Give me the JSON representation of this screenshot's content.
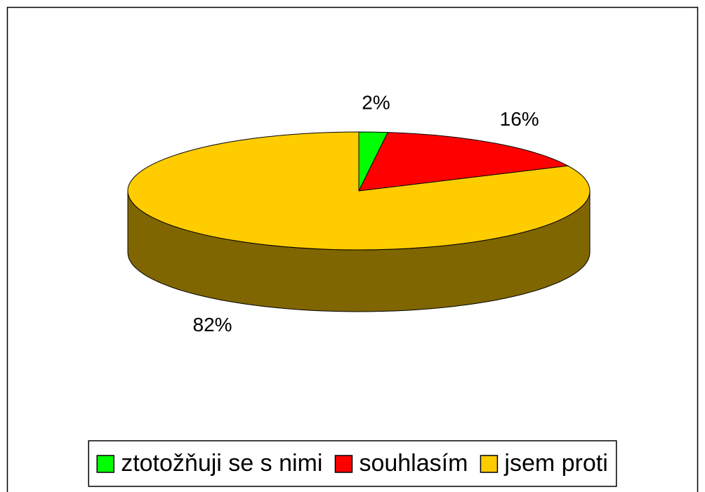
{
  "chart_data": {
    "type": "pie",
    "categories": [
      "ztotožňuji se s nimi",
      "souhlasím",
      "jsem proti"
    ],
    "values": [
      2,
      16,
      82
    ],
    "value_labels": [
      "2%",
      "16%",
      "82%"
    ],
    "colors": [
      "#00ff00",
      "#ff0000",
      "#ffcc00"
    ],
    "legend": "bottom"
  }
}
